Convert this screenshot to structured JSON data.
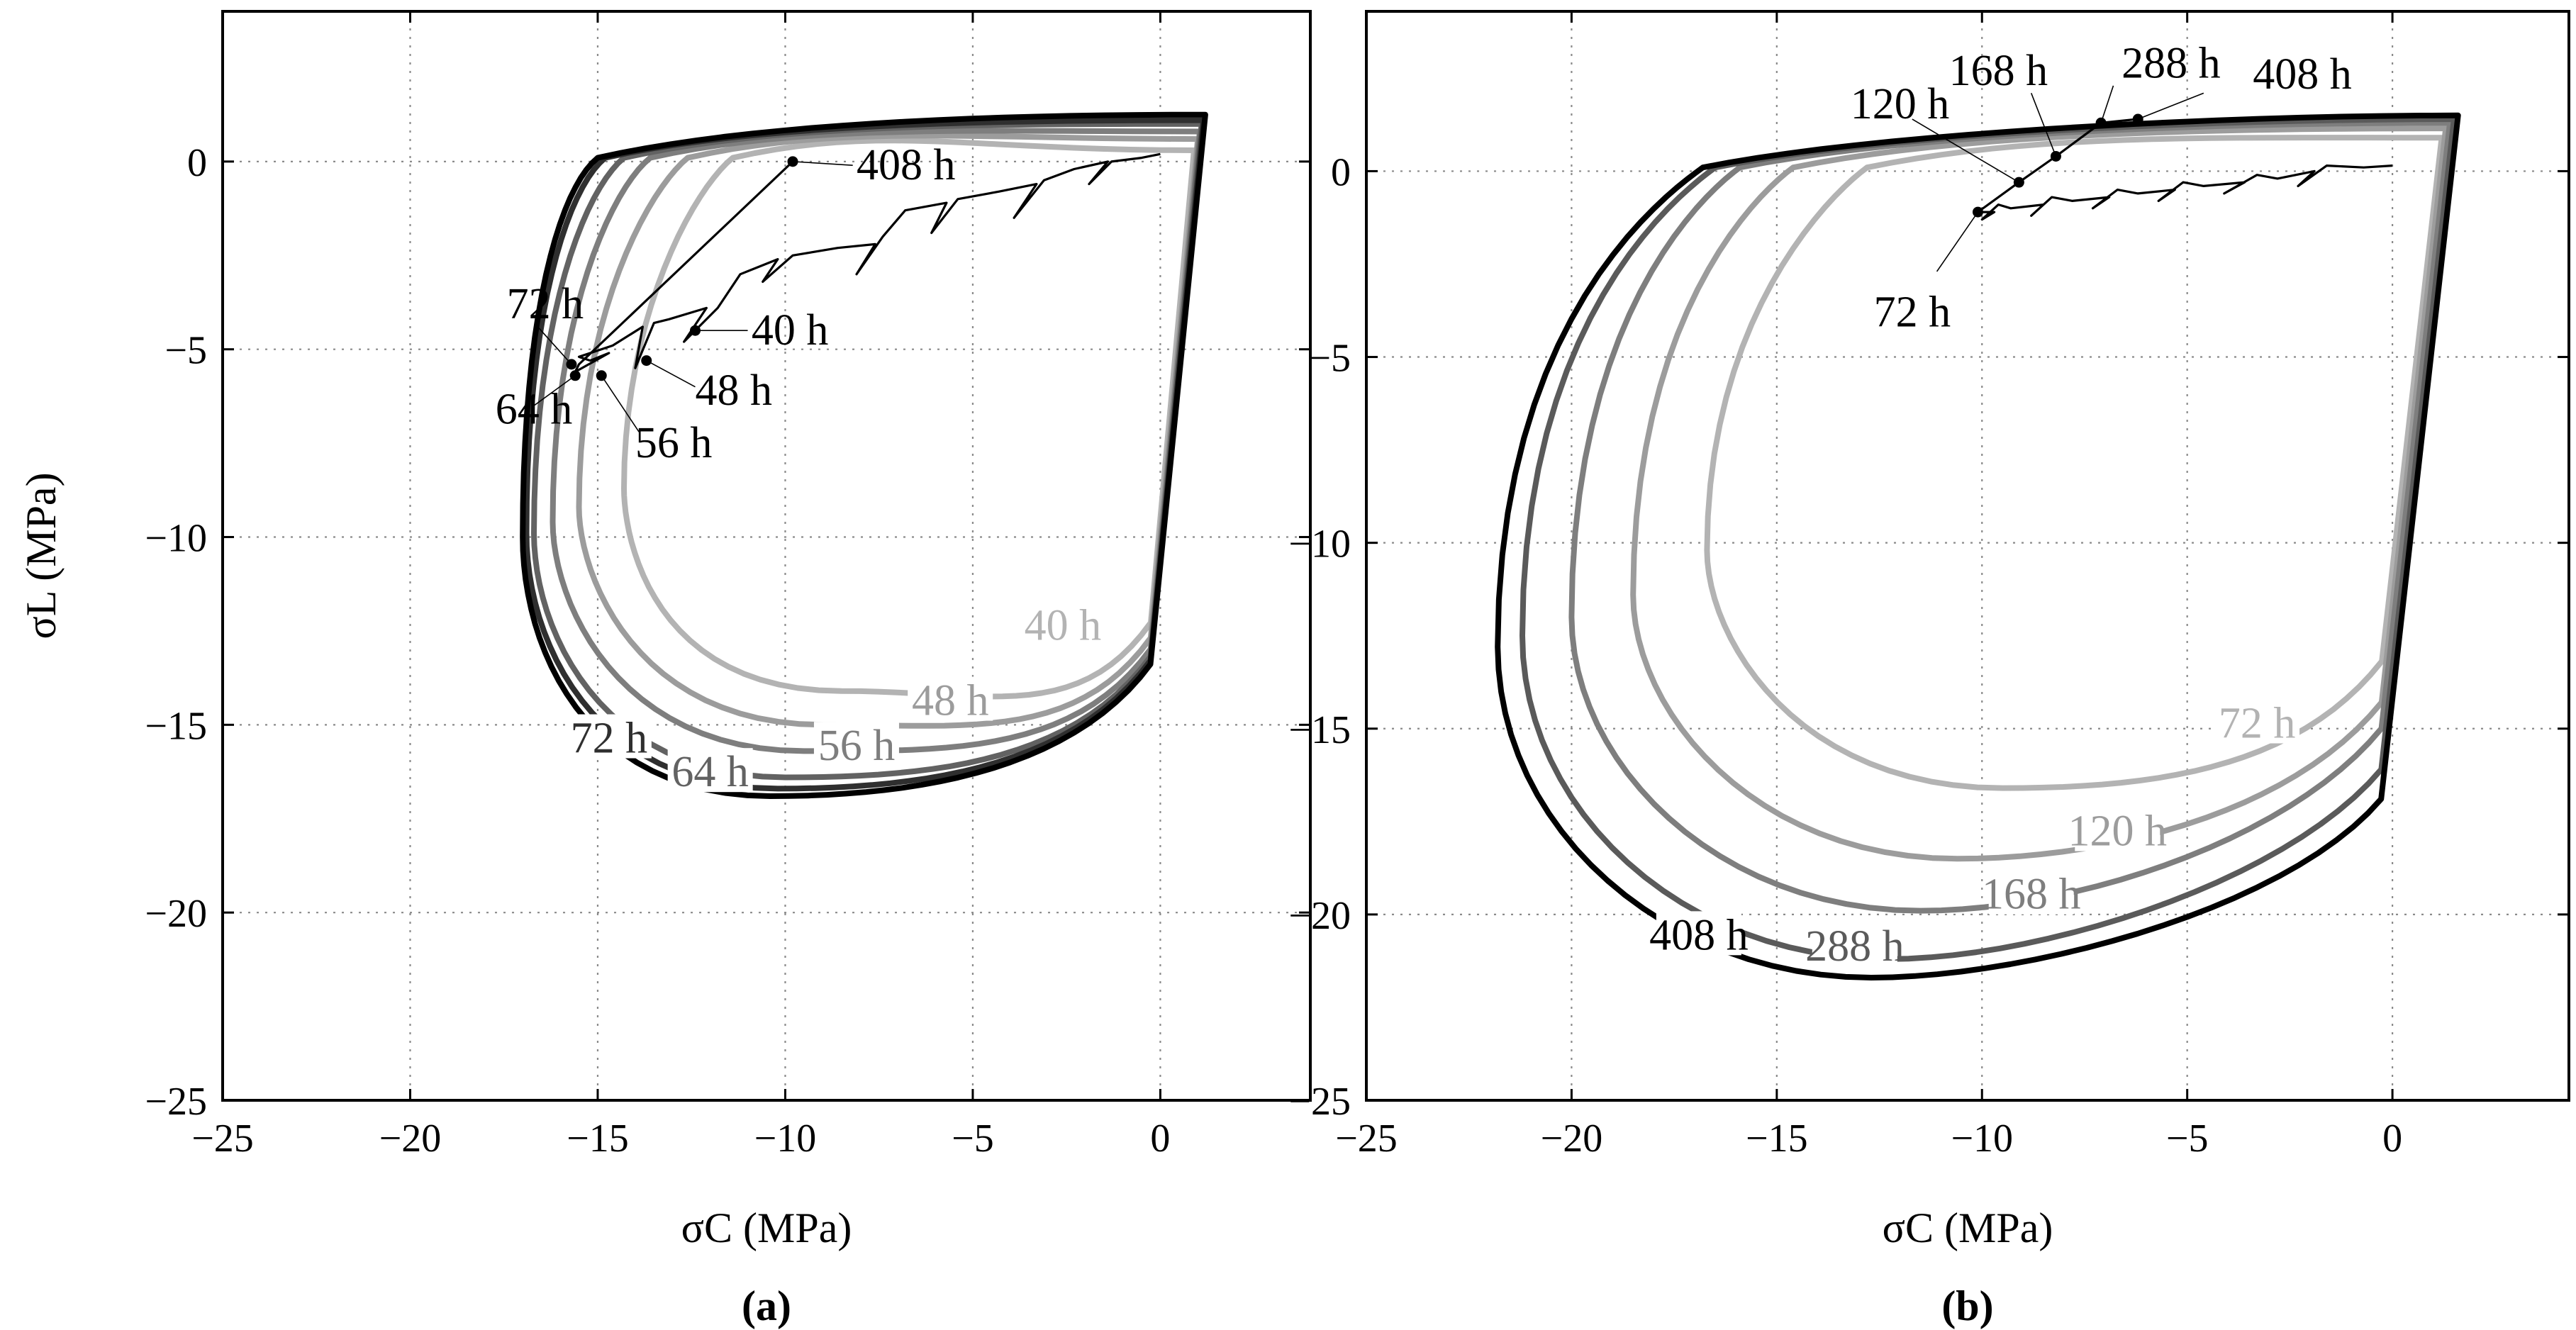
{
  "colors": {
    "40": "#b3b3b3",
    "48": "#9c9c9c",
    "56": "#7e7e7e",
    "64": "#626262",
    "72": "#2f2f2f",
    "408": "#000000",
    "72b": "#b3b3b3",
    "120b": "#9c9c9c",
    "168b": "#7e7e7e",
    "288b": "#5a5a5a",
    "408b": "#000000",
    "path": "#000000"
  },
  "chart_data": [
    {
      "type": "line",
      "caption": "(a)",
      "xlabel": "σC (MPa)",
      "ylabel": "σL (MPa)",
      "xlim": [
        -25,
        4
      ],
      "ylim": [
        -25,
        4
      ],
      "xticks": [
        -25,
        -20,
        -15,
        -10,
        -5,
        0
      ],
      "xtick_labels": [
        "−25",
        "−20",
        "−15",
        "−10",
        "−5",
        "0"
      ],
      "yticks": [
        -25,
        -20,
        -15,
        -10,
        -5,
        0
      ],
      "ytick_labels": [
        "−25",
        "−20",
        "−15",
        "−10",
        "−5",
        "0"
      ],
      "grid": true,
      "series": [
        {
          "name": "40 h",
          "label": "40 h",
          "color_key": "40",
          "params": {
            "xmin": -14.3,
            "xright": -11.4,
            "ytop": 0.3,
            "ybot": -14.1,
            "ymid": -8.7,
            "xbot": -8.5,
            "ycor": -11.9,
            "xtop": 0.9
          },
          "label_at": {
            "x": -2.6,
            "y": -12.4
          }
        },
        {
          "name": "48 h",
          "label": "48 h",
          "color_key": "48",
          "params": {
            "xmin": -15.5,
            "xright": -12.6,
            "ytop": 0.6,
            "ybot": -15.0,
            "ymid": -9.2,
            "xbot": -9.0,
            "ycor": -12.3,
            "xtop": 1.0
          },
          "label_at": {
            "x": -5.6,
            "y": -14.4
          }
        },
        {
          "name": "56 h",
          "label": "56 h",
          "color_key": "56",
          "params": {
            "xmin": -16.2,
            "xright": -13.6,
            "ytop": 0.8,
            "ybot": -15.7,
            "ymid": -9.6,
            "xbot": -9.5,
            "ycor": -12.6,
            "xtop": 1.05
          },
          "label_at": {
            "x": -8.1,
            "y": -15.6
          }
        },
        {
          "name": "64 h",
          "label": "64 h",
          "color_key": "64",
          "params": {
            "xmin": -16.7,
            "xright": -14.3,
            "ytop": 1.0,
            "ybot": -16.4,
            "ymid": -9.9,
            "xbot": -10.0,
            "ycor": -12.8,
            "xtop": 1.1
          },
          "label_at": {
            "x": -12.0,
            "y": -16.3
          }
        },
        {
          "name": "72 h",
          "label": "72 h",
          "color_key": "72",
          "params": {
            "xmin": -16.9,
            "xright": -14.8,
            "ytop": 1.1,
            "ybot": -16.7,
            "ymid": -9.9,
            "xbot": -10.2,
            "ycor": -12.9,
            "xtop": 1.15
          },
          "label_at": {
            "x": -14.7,
            "y": -15.4
          }
        },
        {
          "name": "408 h",
          "label": "",
          "color_key": "408",
          "params": {
            "xmin": -17.0,
            "xright": -15.0,
            "ytop": 1.25,
            "ybot": -16.9,
            "ymid": -10.0,
            "xbot": -10.4,
            "ycor": -13.0,
            "xtop": 1.2
          },
          "label_at": null
        }
      ],
      "path_points": [
        [
          0,
          0.2
        ],
        [
          -0.5,
          0.1
        ],
        [
          -1.3,
          0.0
        ],
        [
          -1.9,
          -0.6
        ],
        [
          -1.4,
          0.0
        ],
        [
          -2.3,
          -0.2
        ],
        [
          -3.1,
          -0.5
        ],
        [
          -3.9,
          -1.5
        ],
        [
          -3.3,
          -0.6
        ],
        [
          -4.3,
          -0.8
        ],
        [
          -5.4,
          -1.0
        ],
        [
          -6.1,
          -1.9
        ],
        [
          -5.7,
          -1.1
        ],
        [
          -6.8,
          -1.3
        ],
        [
          -7.4,
          -2.0
        ],
        [
          -8.1,
          -3.0
        ],
        [
          -7.6,
          -2.2
        ],
        [
          -8.6,
          -2.3
        ],
        [
          -9.8,
          -2.5
        ],
        [
          -10.6,
          -3.2
        ],
        [
          -10.2,
          -2.6
        ],
        [
          -11.2,
          -3.0
        ],
        [
          -11.8,
          -3.9
        ],
        [
          -12.7,
          -4.8
        ],
        [
          -12.1,
          -3.9
        ],
        [
          -13.1,
          -4.2
        ],
        [
          -13.5,
          -4.3
        ],
        [
          -14.0,
          -5.5
        ],
        [
          -13.8,
          -4.4
        ],
        [
          -14.6,
          -4.9
        ],
        [
          -15.5,
          -5.2
        ],
        [
          -15.2,
          -5.3
        ],
        [
          -14.7,
          -5.1
        ],
        [
          -15.6,
          -5.6
        ],
        [
          -15.5,
          -5.4
        ],
        [
          -9.8,
          0.0
        ]
      ],
      "markers": [
        {
          "name": "40 h",
          "label": "40 h",
          "x": -12.4,
          "y": -4.5,
          "lx": -11.0,
          "ly": -4.5,
          "tx": -10.9,
          "ty": -4.5
        },
        {
          "name": "48 h",
          "label": "48 h",
          "x": -13.7,
          "y": -5.3,
          "lx": -12.4,
          "ly": -6.0,
          "tx": -12.4,
          "ty": -6.1
        },
        {
          "name": "56 h",
          "label": "56 h",
          "x": -14.9,
          "y": -5.7,
          "lx": -13.9,
          "ly": -7.2,
          "tx": -14.0,
          "ty": -7.5
        },
        {
          "name": "64 h",
          "label": "64 h",
          "x": -15.6,
          "y": -5.7,
          "lx": -16.7,
          "ly": -6.5,
          "tx": -16.7,
          "ty": -6.6
        },
        {
          "name": "72 h",
          "label": "72 h",
          "x": -15.7,
          "y": -5.4,
          "lx": -16.6,
          "ly": -4.4,
          "tx": -16.4,
          "ty": -3.8
        },
        {
          "name": "408 h",
          "label": "408 h",
          "x": -9.8,
          "y": 0.0,
          "lx": -8.2,
          "ly": -0.1,
          "tx": -8.1,
          "ty": -0.1
        }
      ]
    },
    {
      "type": "line",
      "caption": "(b)",
      "xlabel": "σC (MPa)",
      "ylabel": "",
      "xlim": [
        -25,
        4.3
      ],
      "ylim": [
        -25,
        4.3
      ],
      "xticks": [
        -25,
        -20,
        -15,
        -10,
        -5,
        0
      ],
      "xtick_labels": [
        "−25",
        "−20",
        "−15",
        "−10",
        "−5",
        "0"
      ],
      "yticks": [
        -25,
        -20,
        -15,
        -10,
        -5,
        0
      ],
      "ytick_labels": [
        "−25",
        "−20",
        "−15",
        "−10",
        "−5",
        "0"
      ],
      "grid": true,
      "series": [
        {
          "name": "72 h",
          "label": "72 h",
          "color_key": "72b",
          "params": {
            "xmin": -16.7,
            "xright": -12.8,
            "ytop": 0.9,
            "ybot": -16.6,
            "ymid": -10.2,
            "xbot": -9.5,
            "ycor": -12.8,
            "xtop": 1.2
          },
          "label_at": {
            "x": -3.3,
            "y": -14.9
          }
        },
        {
          "name": "120 h",
          "label": "120 h",
          "color_key": "120b",
          "params": {
            "xmin": -18.5,
            "xright": -14.6,
            "ytop": 1.15,
            "ybot": -18.5,
            "ymid": -11.4,
            "xbot": -10.6,
            "ycor": -13.9,
            "xtop": 1.3
          },
          "label_at": {
            "x": -6.7,
            "y": -17.8
          }
        },
        {
          "name": "168 h",
          "label": "168 h",
          "color_key": "168b",
          "params": {
            "xmin": -20.0,
            "xright": -15.9,
            "ytop": 1.3,
            "ybot": -19.9,
            "ymid": -12.0,
            "xbot": -11.5,
            "ycor": -14.6,
            "xtop": 1.4
          },
          "label_at": {
            "x": -8.8,
            "y": -19.5
          }
        },
        {
          "name": "288 h",
          "label": "288 h",
          "color_key": "288b",
          "params": {
            "xmin": -21.2,
            "xright": -16.5,
            "ytop": 1.4,
            "ybot": -21.2,
            "ymid": -12.5,
            "xbot": -12.3,
            "ycor": -15.7,
            "xtop": 1.5
          },
          "label_at": {
            "x": -13.1,
            "y": -20.9
          }
        },
        {
          "name": "408 h",
          "label": "408 h",
          "color_key": "408b",
          "params": {
            "xmin": -21.8,
            "xright": -16.8,
            "ytop": 1.5,
            "ybot": -21.7,
            "ymid": -12.8,
            "xbot": -12.7,
            "ycor": -16.5,
            "xtop": 1.6
          },
          "label_at": {
            "x": -16.9,
            "y": -20.6
          }
        }
      ],
      "path_points": [
        [
          0,
          0.15
        ],
        [
          -0.7,
          0.1
        ],
        [
          -1.6,
          0.15
        ],
        [
          -2.3,
          -0.4
        ],
        [
          -1.9,
          0.0
        ],
        [
          -2.8,
          -0.2
        ],
        [
          -3.3,
          -0.1
        ],
        [
          -4.1,
          -0.6
        ],
        [
          -3.6,
          -0.3
        ],
        [
          -4.6,
          -0.4
        ],
        [
          -5.1,
          -0.3
        ],
        [
          -5.7,
          -0.8
        ],
        [
          -5.3,
          -0.5
        ],
        [
          -6.2,
          -0.6
        ],
        [
          -6.7,
          -0.5
        ],
        [
          -7.3,
          -1.0
        ],
        [
          -6.9,
          -0.7
        ],
        [
          -7.8,
          -0.8
        ],
        [
          -8.3,
          -0.7
        ],
        [
          -8.8,
          -1.2
        ],
        [
          -8.5,
          -0.9
        ],
        [
          -9.3,
          -1.0
        ],
        [
          -9.6,
          -0.9
        ],
        [
          -10.0,
          -1.3
        ],
        [
          -9.7,
          -1.1
        ],
        [
          -10.1,
          -1.1
        ],
        [
          -9.1,
          -0.3
        ],
        [
          -8.2,
          0.4
        ],
        [
          -7.1,
          1.3
        ],
        [
          -6.2,
          1.4
        ]
      ],
      "markers": [
        {
          "name": "72 h",
          "label": "72 h",
          "x": -10.1,
          "y": -1.1,
          "lx": -11.1,
          "ly": -2.7,
          "tx": -11.7,
          "ty": -3.8
        },
        {
          "name": "120 h",
          "label": "120 h",
          "x": -9.1,
          "y": -0.3,
          "lx": -11.7,
          "ly": 1.4,
          "tx": -12.0,
          "ty": 1.8
        },
        {
          "name": "168 h",
          "label": "168 h",
          "x": -8.2,
          "y": 0.4,
          "lx": -8.8,
          "ly": 2.1,
          "tx": -9.6,
          "ty": 2.7
        },
        {
          "name": "288 h",
          "label": "288 h",
          "x": -7.1,
          "y": 1.3,
          "lx": -6.8,
          "ly": 2.3,
          "tx": -6.6,
          "ty": 2.9
        },
        {
          "name": "408 h",
          "label": "408 h",
          "x": -6.2,
          "y": 1.4,
          "lx": -4.6,
          "ly": 2.1,
          "tx": -3.4,
          "ty": 2.6
        }
      ]
    }
  ]
}
